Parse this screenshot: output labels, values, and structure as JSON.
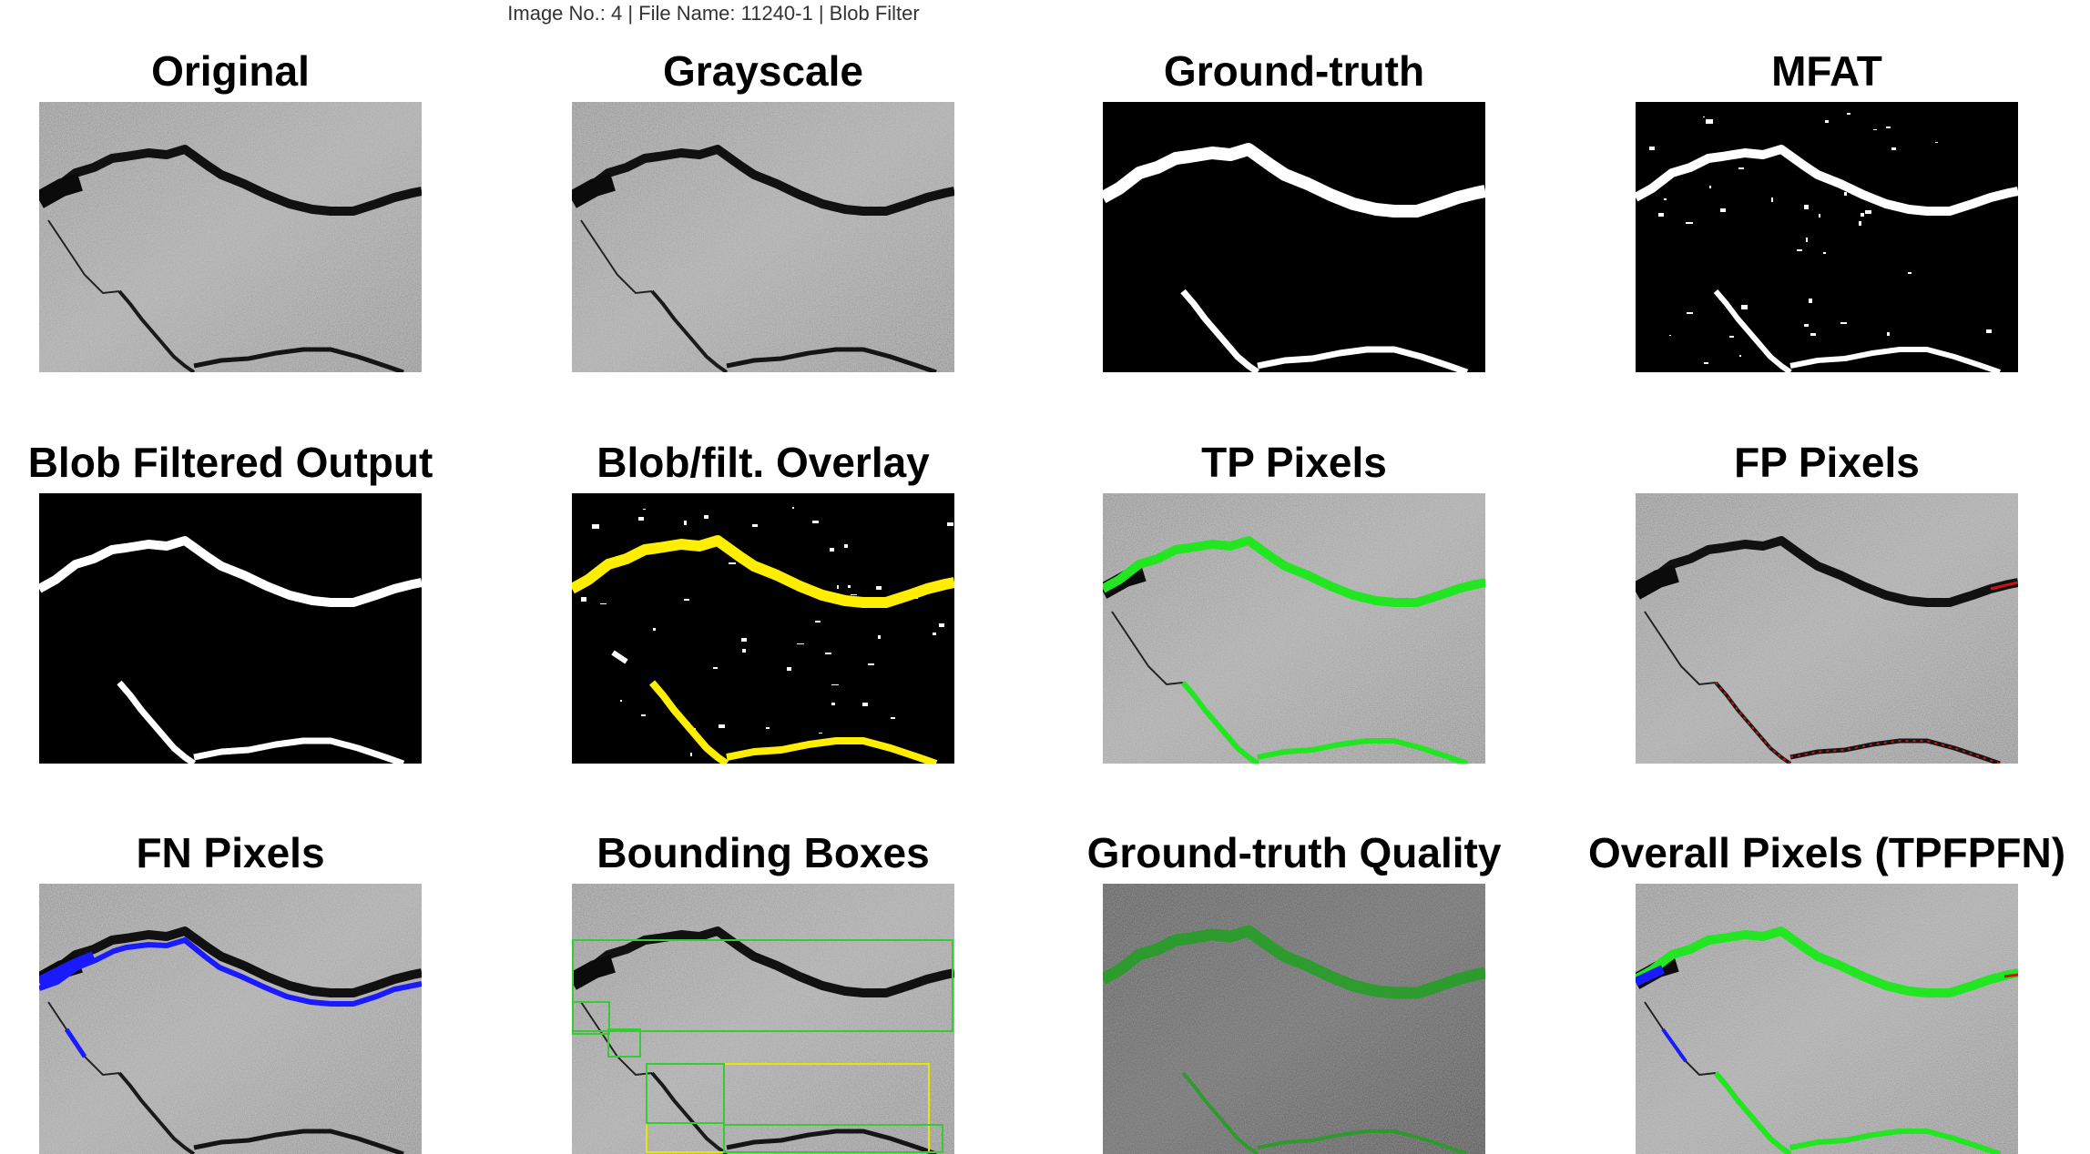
{
  "header": {
    "title": "Image No.: 4 | File Name: 11240-1 | Blob Filter"
  },
  "panels": [
    {
      "title": "Original",
      "kind": "concrete"
    },
    {
      "title": "Grayscale",
      "kind": "concrete"
    },
    {
      "title": "Ground-truth",
      "kind": "mask-gt"
    },
    {
      "title": "MFAT",
      "kind": "mask-mfat"
    },
    {
      "title": "Blob Filtered Output",
      "kind": "mask-blob"
    },
    {
      "title": "Blob/filt. Overlay",
      "kind": "overlay-yellow"
    },
    {
      "title": "TP Pixels",
      "kind": "tp"
    },
    {
      "title": "FP Pixels",
      "kind": "fp"
    },
    {
      "title": "FN Pixels",
      "kind": "fn"
    },
    {
      "title": "Bounding Boxes",
      "kind": "bbox"
    },
    {
      "title": "Ground-truth Quality",
      "kind": "gtq"
    },
    {
      "title": "Overall Pixels (TPFPFN)",
      "kind": "overall"
    }
  ],
  "colors": {
    "tp": "#22e622",
    "fp": "#d01010",
    "fn": "#1a1aff",
    "overlay": "#ffee00",
    "gtq": "#1fa01f",
    "bbox_green": "#33cc33",
    "bbox_yellow": "#e6e600"
  }
}
